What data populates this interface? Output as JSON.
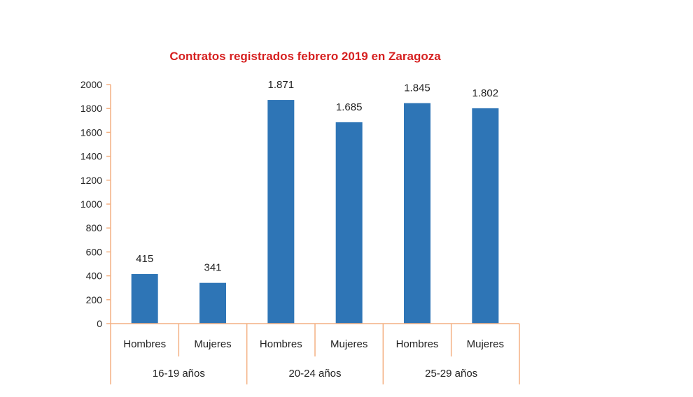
{
  "chart_data": {
    "type": "bar",
    "title": "Contratos registrados febrero 2019 en Zaragoza",
    "groups": [
      "16-19 años",
      "20-24 años",
      "25-29 años"
    ],
    "categories": [
      "Hombres",
      "Mujeres",
      "Hombres",
      "Mujeres",
      "Hombres",
      "Mujeres"
    ],
    "values": [
      415,
      341,
      1871,
      1685,
      1845,
      1802
    ],
    "data_labels": [
      "415",
      "341",
      "1.871",
      "1.685",
      "1.845",
      "1.802"
    ],
    "y_ticks": [
      "0",
      "200",
      "400",
      "600",
      "800",
      "1000",
      "1200",
      "1400",
      "1600",
      "1800",
      "2000"
    ],
    "ylim": [
      0,
      2000
    ],
    "grid": false,
    "legend": "none",
    "bar_color": "#2e75b6",
    "axis_color": "#f4b183",
    "title_color": "#d62020"
  }
}
